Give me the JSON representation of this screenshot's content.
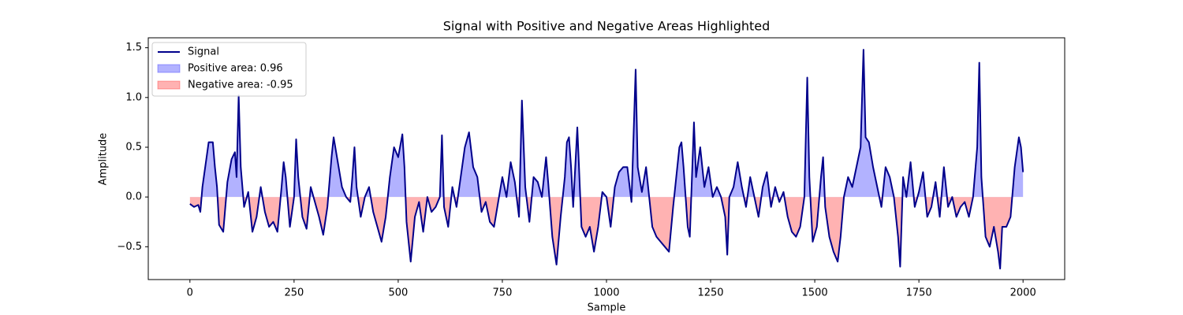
{
  "chart_data": {
    "type": "line",
    "title": "Signal with Positive and Negative Areas Highlighted",
    "xlabel": "Sample",
    "ylabel": "Amplitude",
    "x": [
      0,
      10,
      20,
      25,
      30,
      40,
      45,
      55,
      60,
      65,
      70,
      80,
      85,
      90,
      100,
      108,
      112,
      117,
      122,
      130,
      140,
      150,
      160,
      170,
      180,
      190,
      200,
      210,
      220,
      225,
      230,
      240,
      250,
      255,
      260,
      270,
      280,
      290,
      300,
      310,
      320,
      330,
      340,
      345,
      355,
      365,
      375,
      385,
      390,
      395,
      400,
      410,
      420,
      430,
      440,
      450,
      460,
      470,
      480,
      490,
      500,
      510,
      515,
      520,
      530,
      540,
      550,
      560,
      570,
      580,
      590,
      600,
      605,
      610,
      620,
      630,
      640,
      650,
      660,
      670,
      680,
      690,
      700,
      710,
      720,
      730,
      740,
      750,
      760,
      770,
      780,
      790,
      797,
      805,
      815,
      825,
      835,
      845,
      855,
      860,
      870,
      880,
      890,
      900,
      905,
      910,
      915,
      920,
      930,
      935,
      940,
      950,
      960,
      970,
      980,
      990,
      1000,
      1010,
      1020,
      1030,
      1040,
      1050,
      1060,
      1070,
      1075,
      1085,
      1095,
      1100,
      1110,
      1120,
      1130,
      1140,
      1150,
      1160,
      1170,
      1175,
      1180,
      1185,
      1195,
      1200,
      1210,
      1215,
      1225,
      1235,
      1245,
      1255,
      1265,
      1275,
      1285,
      1290,
      1295,
      1305,
      1315,
      1325,
      1335,
      1345,
      1355,
      1365,
      1375,
      1385,
      1395,
      1405,
      1415,
      1425,
      1435,
      1445,
      1455,
      1465,
      1475,
      1482,
      1487,
      1495,
      1505,
      1515,
      1520,
      1525,
      1535,
      1545,
      1555,
      1562,
      1570,
      1580,
      1590,
      1600,
      1610,
      1617,
      1622,
      1630,
      1640,
      1650,
      1660,
      1670,
      1680,
      1690,
      1700,
      1705,
      1712,
      1720,
      1730,
      1740,
      1750,
      1760,
      1770,
      1780,
      1790,
      1800,
      1810,
      1820,
      1830,
      1840,
      1850,
      1860,
      1870,
      1880,
      1890,
      1895,
      1900,
      1910,
      1920,
      1930,
      1940,
      1945,
      1950,
      1960,
      1970,
      1980,
      1990,
      1995,
      2000
    ],
    "series": [
      {
        "name": "Signal",
        "color": "#00008b",
        "values": [
          -0.07,
          -0.1,
          -0.08,
          -0.15,
          0.1,
          0.4,
          0.55,
          0.55,
          0.3,
          0.1,
          -0.28,
          -0.35,
          -0.1,
          0.15,
          0.38,
          0.45,
          0.2,
          1.02,
          0.3,
          -0.1,
          0.05,
          -0.35,
          -0.2,
          0.1,
          -0.15,
          -0.3,
          -0.25,
          -0.35,
          0.1,
          0.35,
          0.2,
          -0.3,
          0.0,
          0.58,
          0.2,
          -0.2,
          -0.32,
          0.1,
          -0.05,
          -0.2,
          -0.38,
          -0.1,
          0.4,
          0.6,
          0.35,
          0.1,
          0.0,
          -0.05,
          0.2,
          0.5,
          0.1,
          -0.2,
          0.0,
          0.1,
          -0.15,
          -0.3,
          -0.45,
          -0.2,
          0.2,
          0.5,
          0.4,
          0.63,
          0.3,
          -0.25,
          -0.65,
          -0.2,
          -0.05,
          -0.35,
          0.0,
          -0.15,
          -0.1,
          0.0,
          0.62,
          -0.1,
          -0.3,
          0.1,
          -0.1,
          0.2,
          0.5,
          0.65,
          0.3,
          0.2,
          -0.15,
          -0.05,
          -0.25,
          -0.3,
          -0.05,
          0.2,
          0.0,
          0.35,
          0.15,
          -0.2,
          0.97,
          0.1,
          -0.25,
          0.2,
          0.15,
          0.0,
          0.4,
          0.15,
          -0.4,
          -0.68,
          -0.2,
          0.2,
          0.55,
          0.6,
          0.3,
          -0.1,
          0.7,
          0.2,
          -0.3,
          -0.4,
          -0.3,
          -0.55,
          -0.3,
          0.05,
          0.0,
          -0.3,
          0.1,
          0.25,
          0.3,
          0.3,
          -0.05,
          1.28,
          0.3,
          0.05,
          0.3,
          0.1,
          -0.3,
          -0.4,
          -0.45,
          -0.5,
          -0.55,
          -0.1,
          0.3,
          0.5,
          0.55,
          0.3,
          -0.3,
          -0.4,
          0.75,
          0.2,
          0.5,
          0.1,
          0.3,
          0.0,
          0.1,
          0.0,
          -0.2,
          -0.58,
          0.0,
          0.1,
          0.35,
          0.1,
          -0.1,
          0.2,
          0.0,
          -0.2,
          0.1,
          0.25,
          -0.1,
          0.1,
          -0.05,
          0.05,
          -0.2,
          -0.35,
          -0.4,
          -0.3,
          0.0,
          1.2,
          0.2,
          -0.45,
          -0.3,
          0.2,
          0.4,
          -0.1,
          -0.4,
          -0.55,
          -0.65,
          -0.4,
          0.0,
          0.2,
          0.1,
          0.3,
          0.5,
          1.48,
          0.6,
          0.55,
          0.3,
          0.1,
          -0.1,
          0.3,
          0.2,
          0.0,
          -0.4,
          -0.7,
          0.2,
          0.0,
          0.35,
          -0.1,
          0.05,
          0.25,
          -0.2,
          -0.1,
          0.15,
          -0.2,
          0.3,
          -0.1,
          0.0,
          -0.2,
          -0.1,
          -0.05,
          -0.2,
          0.0,
          0.5,
          1.35,
          0.2,
          -0.4,
          -0.5,
          -0.3,
          -0.55,
          -0.72,
          -0.3,
          -0.3,
          -0.2,
          0.3,
          0.6,
          0.5,
          0.25
        ]
      }
    ],
    "areas": [
      {
        "name": "Positive area: 0.96",
        "color": "#0000ff",
        "alpha": 0.3,
        "side": "positive"
      },
      {
        "name": "Negative area: -0.95",
        "color": "#ff0000",
        "alpha": 0.3,
        "side": "negative"
      }
    ],
    "xlim": [
      -100,
      2100
    ],
    "ylim": [
      -0.83,
      1.6
    ],
    "xticks": [
      0,
      250,
      500,
      750,
      1000,
      1250,
      1500,
      1750,
      2000
    ],
    "yticks": [
      {
        "value": -0.5,
        "label": "−0.5"
      },
      {
        "value": 0,
        "label": "0.0"
      },
      {
        "value": 0.5,
        "label": "0.5"
      },
      {
        "value": 1,
        "label": "1.0"
      },
      {
        "value": 1.5,
        "label": "1.5"
      }
    ],
    "legend": "upper left"
  }
}
